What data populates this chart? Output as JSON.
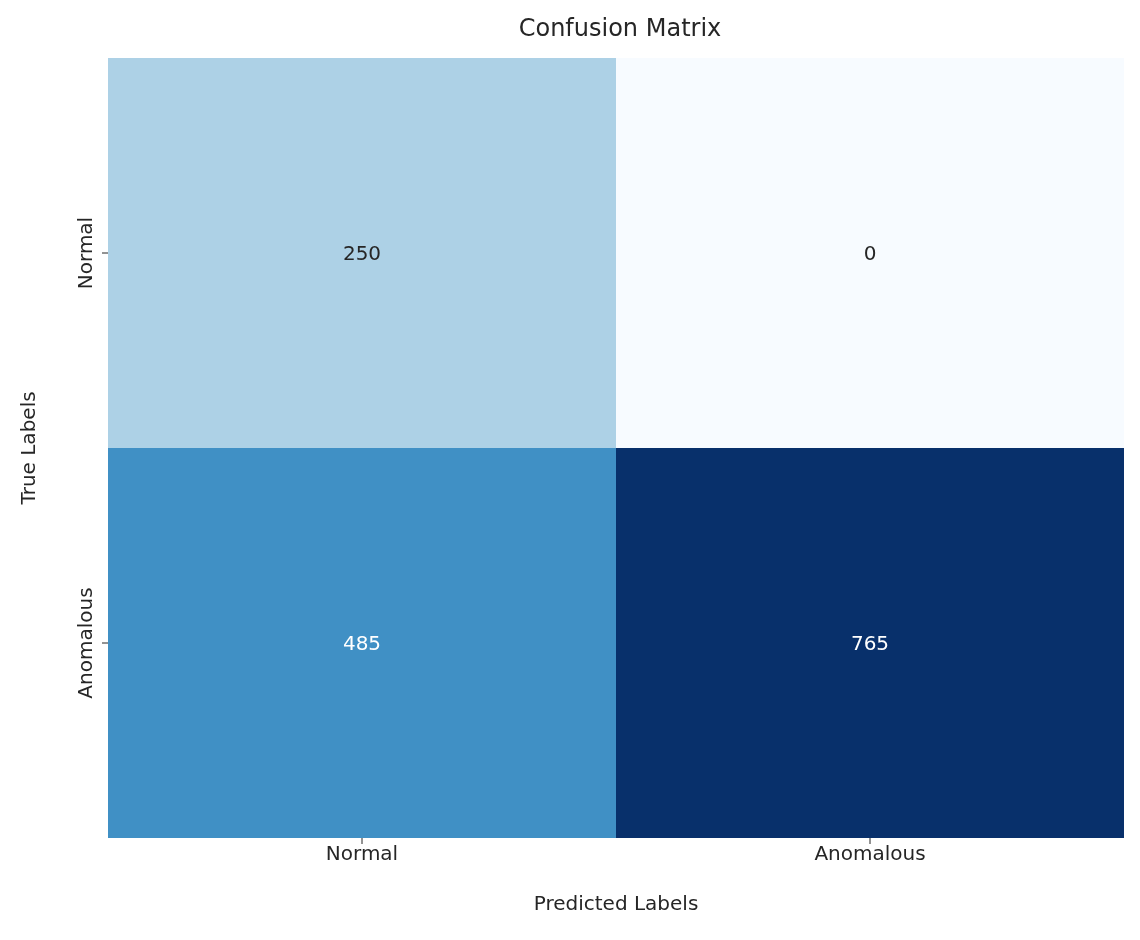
{
  "chart_data": {
    "type": "heatmap",
    "title": "Confusion Matrix",
    "xlabel": "Predicted Labels",
    "ylabel": "True Labels",
    "categories": [
      "Normal",
      "Anomalous"
    ],
    "y_categories": [
      "Normal",
      "Anomalous"
    ],
    "cells": [
      [
        250,
        0
      ],
      [
        485,
        765
      ]
    ],
    "data_labels": true
  }
}
